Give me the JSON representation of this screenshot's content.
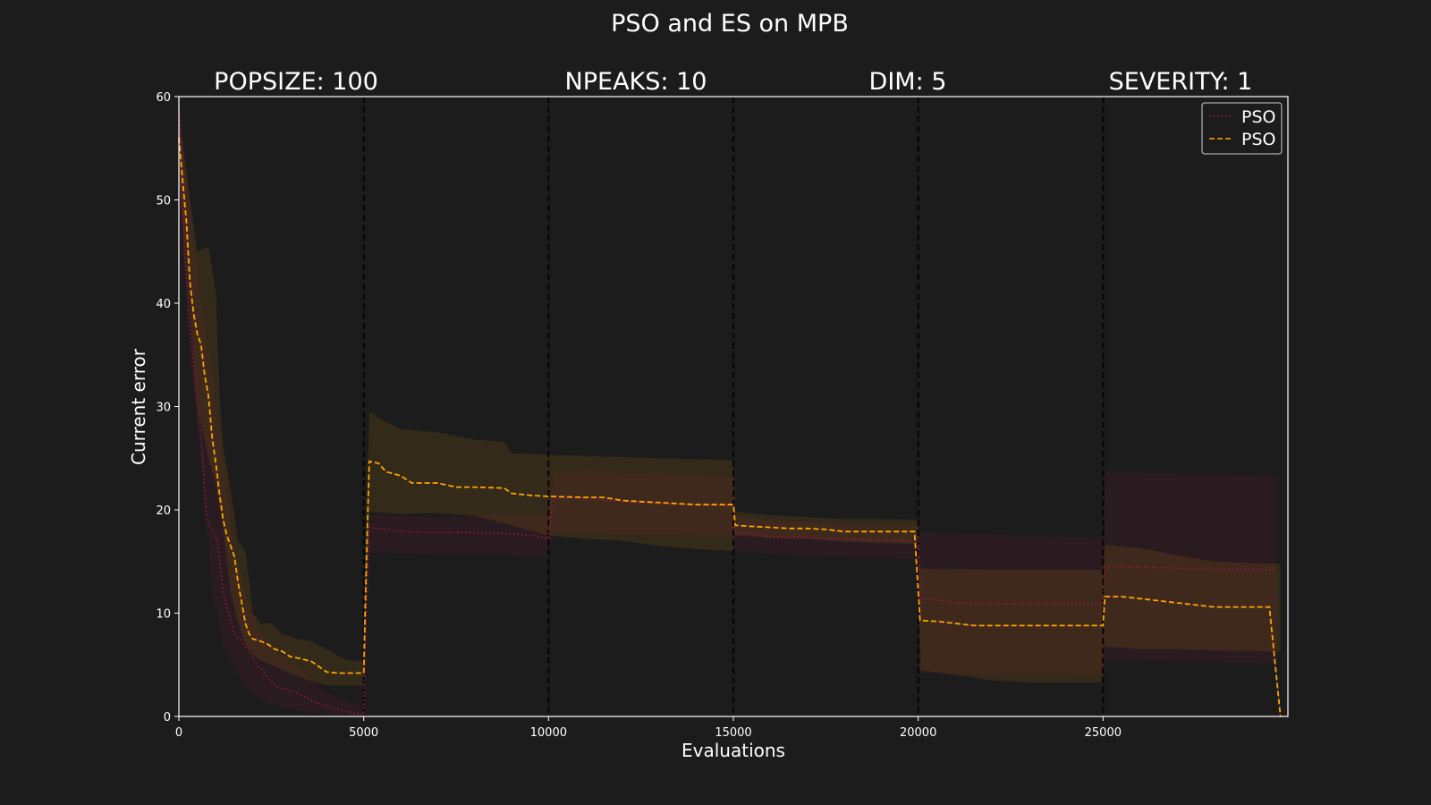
{
  "chart_data": {
    "type": "line",
    "title": "PSO and ES on MPB",
    "xlabel": "Evaluations",
    "ylabel": "Current error",
    "xlim": [
      0,
      30000
    ],
    "ylim": [
      0,
      60
    ],
    "xticks": [
      "0",
      "5000",
      "10000",
      "15000",
      "20000",
      "25000"
    ],
    "yticks": [
      "0",
      "10",
      "20",
      "30",
      "40",
      "50",
      "60"
    ],
    "change_points": [
      5000,
      10000,
      15000,
      20000,
      25000
    ],
    "header_labels": [
      "POPSIZE: 100",
      "NPEAKS: 10",
      "DIM: 5",
      "SEVERITY: 1"
    ],
    "legend_position": "top-right",
    "grid": false,
    "series": [
      {
        "name": "PSO",
        "color": "#b0124e",
        "style": "dotted",
        "points": [
          [
            0,
            60
          ],
          [
            150,
            45
          ],
          [
            300,
            38
          ],
          [
            450,
            32
          ],
          [
            600,
            27
          ],
          [
            750,
            19
          ],
          [
            900,
            18
          ],
          [
            1050,
            17
          ],
          [
            1200,
            12
          ],
          [
            1350,
            10
          ],
          [
            1500,
            8
          ],
          [
            1650,
            7.5
          ],
          [
            1800,
            6.8
          ],
          [
            1950,
            6
          ],
          [
            2100,
            5
          ],
          [
            2250,
            4.5
          ],
          [
            2400,
            3.7
          ],
          [
            2550,
            3.2
          ],
          [
            2700,
            2.8
          ],
          [
            3000,
            2.5
          ],
          [
            3300,
            2.1
          ],
          [
            3600,
            1.5
          ],
          [
            3900,
            1.1
          ],
          [
            4200,
            0.8
          ],
          [
            4500,
            0.5
          ],
          [
            4800,
            0.3
          ],
          [
            5000,
            0.2
          ],
          [
            5050,
            8
          ],
          [
            5150,
            18.3
          ],
          [
            5400,
            18.2
          ],
          [
            5800,
            18
          ],
          [
            6300,
            17.8
          ],
          [
            7000,
            17.8
          ],
          [
            8000,
            17.8
          ],
          [
            9000,
            17.7
          ],
          [
            9600,
            17.5
          ],
          [
            10000,
            17.2
          ],
          [
            10100,
            21
          ],
          [
            10300,
            21.2
          ],
          [
            11000,
            21.1
          ],
          [
            12000,
            20.8
          ],
          [
            13000,
            20.6
          ],
          [
            14000,
            20.5
          ],
          [
            15000,
            20.4
          ],
          [
            15050,
            17.8
          ],
          [
            15500,
            17.7
          ],
          [
            16000,
            17.4
          ],
          [
            17000,
            17.3
          ],
          [
            18000,
            17.2
          ],
          [
            19000,
            17.1
          ],
          [
            20000,
            17
          ],
          [
            20050,
            11.4
          ],
          [
            20500,
            11.3
          ],
          [
            21000,
            11
          ],
          [
            22000,
            10.9
          ],
          [
            23000,
            10.9
          ],
          [
            24000,
            10.9
          ],
          [
            25000,
            10.9
          ],
          [
            25050,
            14.5
          ],
          [
            25500,
            14.5
          ],
          [
            26500,
            14.4
          ],
          [
            27500,
            14.3
          ],
          [
            28500,
            14.2
          ],
          [
            29500,
            14.2
          ],
          [
            29700,
            14.2
          ]
        ],
        "band_upper": [
          [
            0,
            60
          ],
          [
            300,
            50
          ],
          [
            600,
            40
          ],
          [
            900,
            33
          ],
          [
            1200,
            25
          ],
          [
            1500,
            16
          ],
          [
            1800,
            12
          ],
          [
            2100,
            9
          ],
          [
            2400,
            7
          ],
          [
            2700,
            6
          ],
          [
            3300,
            4.5
          ],
          [
            3900,
            2.5
          ],
          [
            4500,
            1.5
          ],
          [
            5000,
            1
          ],
          [
            5150,
            19.5
          ],
          [
            6000,
            19.4
          ],
          [
            7000,
            19.2
          ],
          [
            8000,
            19.4
          ],
          [
            9000,
            19.6
          ],
          [
            10000,
            19.5
          ],
          [
            10150,
            23.5
          ],
          [
            11000,
            23.8
          ],
          [
            12000,
            23.6
          ],
          [
            13000,
            23.5
          ],
          [
            14000,
            23.3
          ],
          [
            15000,
            23.2
          ],
          [
            15050,
            19.5
          ],
          [
            16000,
            19
          ],
          [
            17000,
            18.8
          ],
          [
            18000,
            18.6
          ],
          [
            19000,
            18.5
          ],
          [
            20000,
            18.5
          ],
          [
            20050,
            17.8
          ],
          [
            22000,
            17.6
          ],
          [
            24000,
            17.4
          ],
          [
            25000,
            17.3
          ],
          [
            25050,
            23.8
          ],
          [
            26000,
            23.6
          ],
          [
            27500,
            23.5
          ],
          [
            29700,
            23.3
          ]
        ],
        "band_lower": [
          [
            0,
            50
          ],
          [
            300,
            35
          ],
          [
            600,
            25
          ],
          [
            900,
            12
          ],
          [
            1200,
            7
          ],
          [
            1500,
            4.5
          ],
          [
            1800,
            3
          ],
          [
            2100,
            2
          ],
          [
            2400,
            1.3
          ],
          [
            2700,
            1
          ],
          [
            3300,
            0.5
          ],
          [
            3900,
            0.2
          ],
          [
            5000,
            0
          ],
          [
            5150,
            16
          ],
          [
            6000,
            15.8
          ],
          [
            7000,
            15.7
          ],
          [
            8000,
            15.6
          ],
          [
            9000,
            15.6
          ],
          [
            10000,
            15.5
          ],
          [
            10150,
            17.8
          ],
          [
            12000,
            17.6
          ],
          [
            14000,
            17.5
          ],
          [
            15000,
            17.4
          ],
          [
            15050,
            16
          ],
          [
            17000,
            15.5
          ],
          [
            20000,
            15.2
          ],
          [
            20050,
            4.2
          ],
          [
            22000,
            4.1
          ],
          [
            24000,
            4.1
          ],
          [
            25000,
            4
          ],
          [
            25050,
            5.5
          ],
          [
            27000,
            5.3
          ],
          [
            29700,
            5.1
          ]
        ]
      },
      {
        "name": "PSO",
        "color": "#ffa500",
        "style": "dashed",
        "points": [
          [
            0,
            56
          ],
          [
            100,
            52
          ],
          [
            200,
            48
          ],
          [
            300,
            42
          ],
          [
            400,
            39
          ],
          [
            500,
            37
          ],
          [
            600,
            36
          ],
          [
            700,
            33
          ],
          [
            800,
            31
          ],
          [
            900,
            27
          ],
          [
            1000,
            24.5
          ],
          [
            1100,
            21.5
          ],
          [
            1200,
            19
          ],
          [
            1300,
            17.5
          ],
          [
            1400,
            16.5
          ],
          [
            1500,
            15.5
          ],
          [
            1600,
            13
          ],
          [
            1700,
            11
          ],
          [
            1800,
            9
          ],
          [
            1900,
            8
          ],
          [
            2000,
            7.5
          ],
          [
            2200,
            7.3
          ],
          [
            2400,
            7
          ],
          [
            2600,
            6.5
          ],
          [
            2800,
            6.3
          ],
          [
            3000,
            5.8
          ],
          [
            3300,
            5.6
          ],
          [
            3600,
            5.3
          ],
          [
            3800,
            4.8
          ],
          [
            4000,
            4.3
          ],
          [
            4300,
            4.2
          ],
          [
            4700,
            4.2
          ],
          [
            5000,
            4.2
          ],
          [
            5050,
            12
          ],
          [
            5150,
            24.7
          ],
          [
            5400,
            24.5
          ],
          [
            5600,
            23.7
          ],
          [
            6000,
            23.3
          ],
          [
            6300,
            22.6
          ],
          [
            7000,
            22.6
          ],
          [
            7500,
            22.2
          ],
          [
            8000,
            22.2
          ],
          [
            8800,
            22.1
          ],
          [
            9000,
            21.6
          ],
          [
            9500,
            21.4
          ],
          [
            10000,
            21.3
          ],
          [
            11000,
            21.2
          ],
          [
            11500,
            21.2
          ],
          [
            12000,
            20.9
          ],
          [
            12500,
            20.8
          ],
          [
            13000,
            20.7
          ],
          [
            13500,
            20.6
          ],
          [
            14000,
            20.5
          ],
          [
            15000,
            20.5
          ],
          [
            15050,
            18.5
          ],
          [
            15500,
            18.4
          ],
          [
            16000,
            18.3
          ],
          [
            16500,
            18.2
          ],
          [
            17000,
            18.2
          ],
          [
            17500,
            18.1
          ],
          [
            18000,
            17.9
          ],
          [
            19000,
            17.9
          ],
          [
            19900,
            17.9
          ],
          [
            20050,
            9.3
          ],
          [
            20500,
            9.2
          ],
          [
            21000,
            9
          ],
          [
            21500,
            8.8
          ],
          [
            22000,
            8.8
          ],
          [
            23000,
            8.8
          ],
          [
            24000,
            8.8
          ],
          [
            25000,
            8.8
          ],
          [
            25050,
            11.6
          ],
          [
            25500,
            11.6
          ],
          [
            26000,
            11.4
          ],
          [
            26500,
            11.2
          ],
          [
            27000,
            11
          ],
          [
            27500,
            10.8
          ],
          [
            28000,
            10.6
          ],
          [
            28500,
            10.6
          ],
          [
            29500,
            10.6
          ],
          [
            29800,
            0
          ]
        ],
        "band_upper": [
          [
            0,
            58
          ],
          [
            300,
            50
          ],
          [
            500,
            45
          ],
          [
            800,
            45.5
          ],
          [
            1000,
            41
          ],
          [
            1100,
            31
          ],
          [
            1200,
            26
          ],
          [
            1400,
            22
          ],
          [
            1600,
            17
          ],
          [
            1800,
            16
          ],
          [
            2000,
            10
          ],
          [
            2200,
            9
          ],
          [
            2500,
            9
          ],
          [
            2800,
            8
          ],
          [
            3200,
            7.5
          ],
          [
            3600,
            7.3
          ],
          [
            4000,
            6.5
          ],
          [
            4500,
            5.5
          ],
          [
            5000,
            5.3
          ],
          [
            5150,
            29.5
          ],
          [
            5500,
            28.7
          ],
          [
            6000,
            27.8
          ],
          [
            7000,
            27.5
          ],
          [
            8000,
            26.8
          ],
          [
            8800,
            26.6
          ],
          [
            9000,
            25.5
          ],
          [
            9500,
            25.4
          ],
          [
            10000,
            25.3
          ],
          [
            11000,
            25.2
          ],
          [
            12000,
            25.1
          ],
          [
            13000,
            25
          ],
          [
            14000,
            24.9
          ],
          [
            15000,
            24.8
          ],
          [
            15050,
            19.8
          ],
          [
            16000,
            19.5
          ],
          [
            17000,
            19.3
          ],
          [
            18000,
            19.1
          ],
          [
            19000,
            19.1
          ],
          [
            20000,
            19
          ],
          [
            20050,
            14.3
          ],
          [
            22000,
            14.2
          ],
          [
            24000,
            14.2
          ],
          [
            25000,
            14.2
          ],
          [
            25050,
            16.6
          ],
          [
            26000,
            16.3
          ],
          [
            27000,
            15.6
          ],
          [
            28000,
            15
          ],
          [
            29500,
            14.8
          ],
          [
            29800,
            14.8
          ]
        ],
        "band_lower": [
          [
            0,
            52
          ],
          [
            300,
            40
          ],
          [
            500,
            30
          ],
          [
            800,
            25
          ],
          [
            1000,
            22.5
          ],
          [
            1200,
            18
          ],
          [
            1400,
            12
          ],
          [
            1600,
            9
          ],
          [
            1800,
            7
          ],
          [
            2000,
            6
          ],
          [
            2200,
            5.5
          ],
          [
            2500,
            5
          ],
          [
            3000,
            4.2
          ],
          [
            3500,
            3.5
          ],
          [
            4000,
            3
          ],
          [
            4500,
            3
          ],
          [
            5000,
            3
          ],
          [
            5150,
            19.8
          ],
          [
            6000,
            19.6
          ],
          [
            7000,
            19.7
          ],
          [
            8000,
            19.4
          ],
          [
            9000,
            18.5
          ],
          [
            10000,
            17.5
          ],
          [
            11000,
            17.2
          ],
          [
            12000,
            17
          ],
          [
            13000,
            16.5
          ],
          [
            14000,
            16.2
          ],
          [
            15000,
            16
          ],
          [
            15050,
            17.5
          ],
          [
            16000,
            17.3
          ],
          [
            17000,
            17.2
          ],
          [
            18000,
            16.9
          ],
          [
            19000,
            16.8
          ],
          [
            20000,
            16.7
          ],
          [
            20050,
            4.5
          ],
          [
            21000,
            4
          ],
          [
            22000,
            3.5
          ],
          [
            23000,
            3.3
          ],
          [
            24000,
            3.3
          ],
          [
            25000,
            3.3
          ],
          [
            25050,
            6.8
          ],
          [
            26000,
            6.5
          ],
          [
            27000,
            6.5
          ],
          [
            28000,
            6.4
          ],
          [
            29500,
            6.3
          ],
          [
            29800,
            6.3
          ]
        ]
      }
    ]
  }
}
